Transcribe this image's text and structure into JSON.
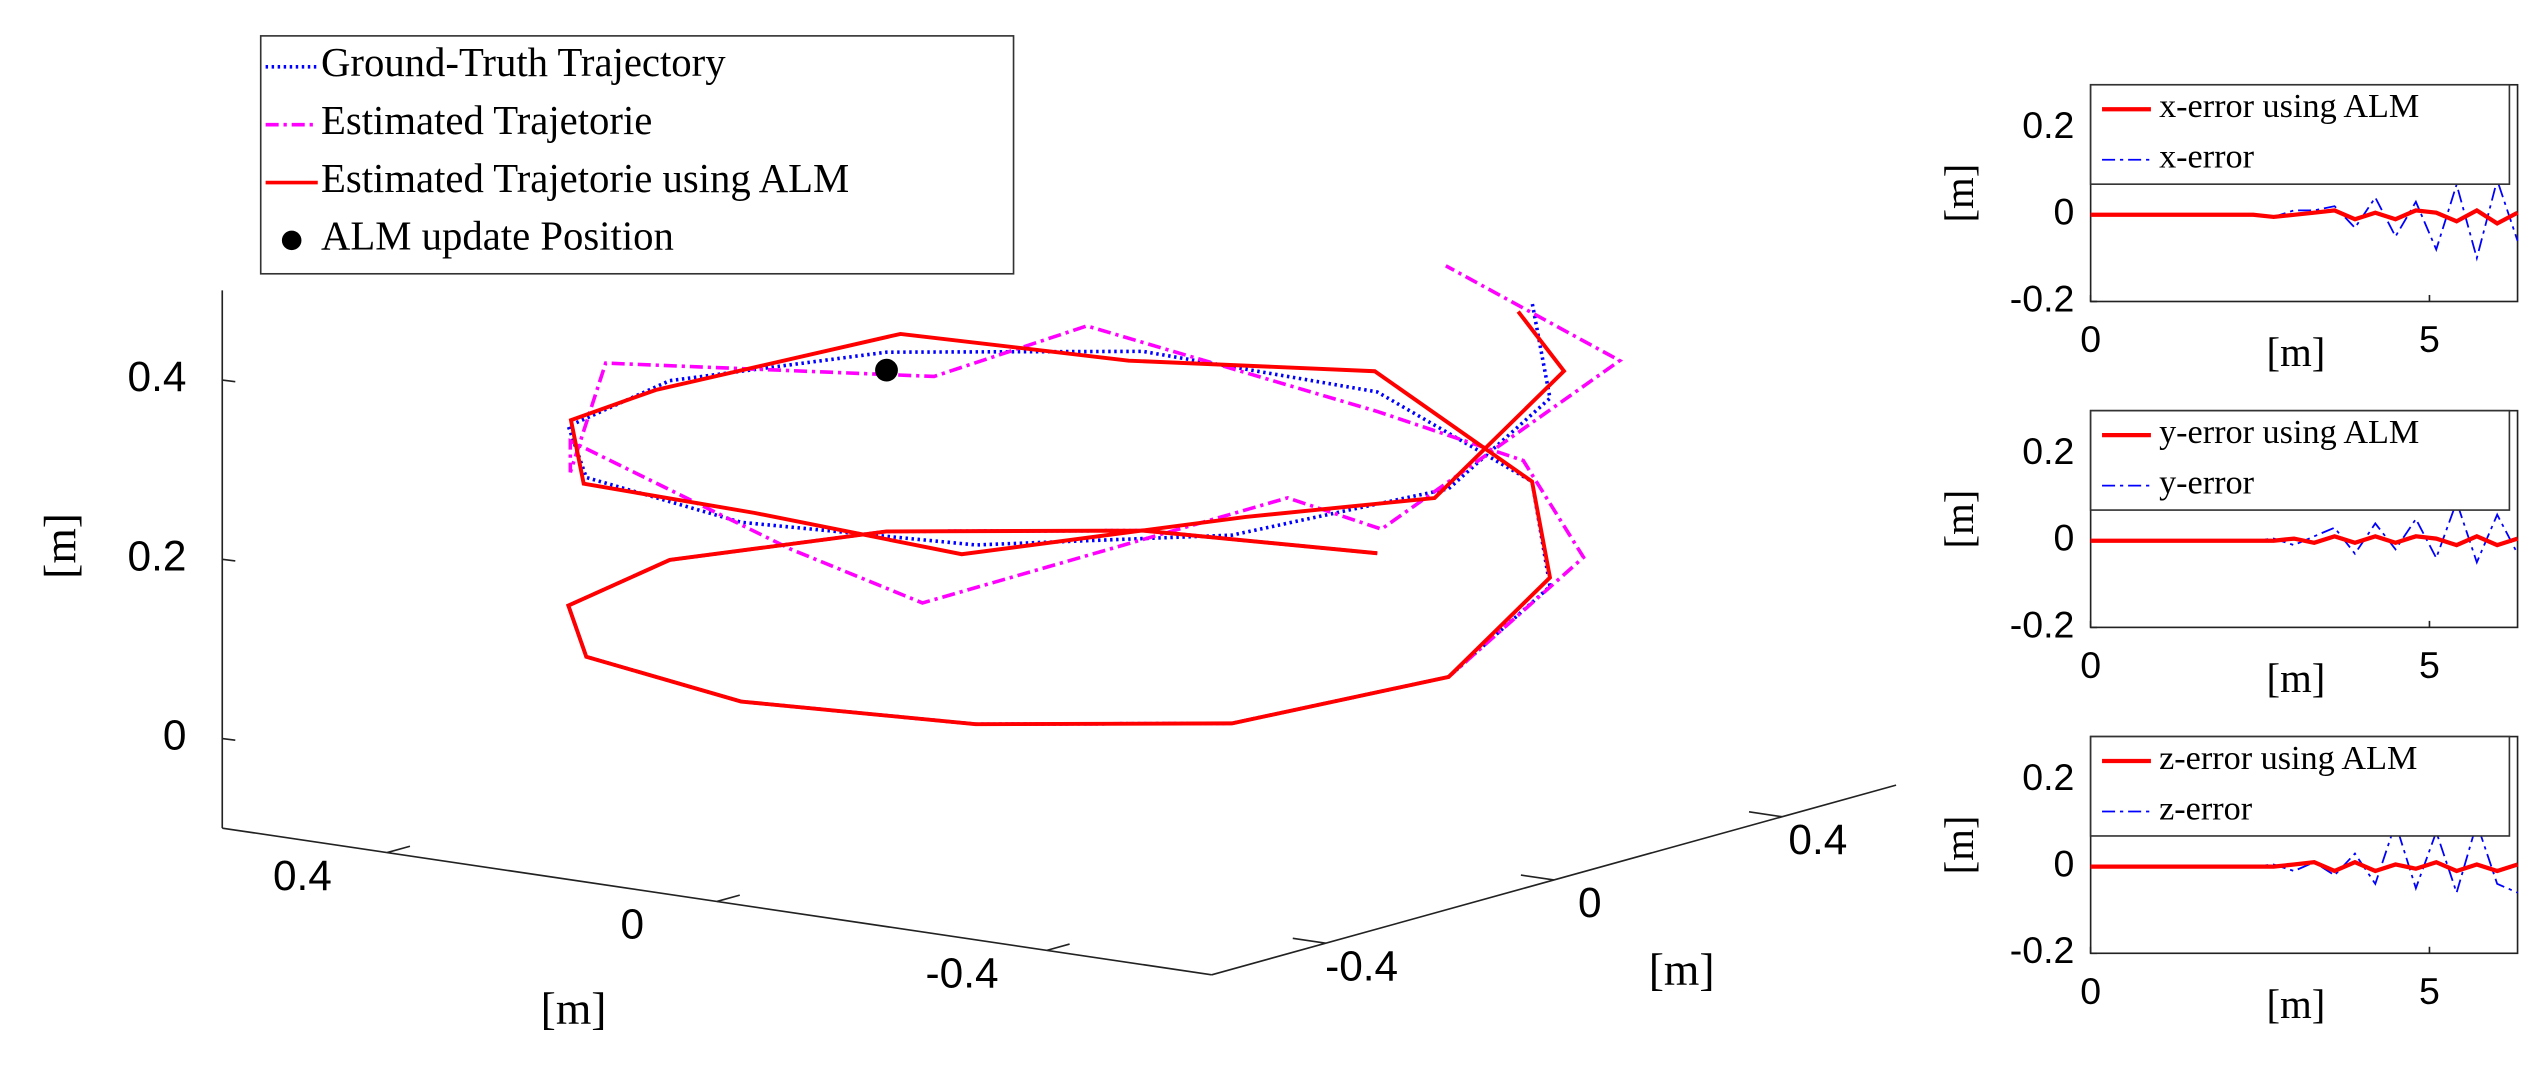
{
  "chart_data": [
    {
      "type": "line3d",
      "xlabel": "[m]",
      "ylabel": "[m]",
      "zlabel": "[m]",
      "xlim": [
        -0.6,
        0.6
      ],
      "ylim": [
        -0.6,
        0.6
      ],
      "zlim": [
        -0.1,
        0.5
      ],
      "xticks": [
        -0.4,
        0,
        0.4
      ],
      "yticks": [
        -0.4,
        0,
        0.4
      ],
      "zticks": [
        0,
        0.2,
        0.4
      ],
      "legend": "upper left",
      "series": [
        {
          "name": "Ground-Truth Trajectory",
          "color": "#0000ff",
          "style": "dotted",
          "x": [
            -0.04,
            0.21,
            0.41,
            0.5,
            0.45,
            0.29,
            0.04,
            -0.21,
            -0.41,
            -0.5,
            -0.45,
            -0.29,
            -0.04,
            0.21,
            0.41,
            0.5,
            0.45,
            0.29,
            0.04,
            -0.21,
            -0.41,
            -0.5,
            -0.45,
            -0.29
          ],
          "y": [
            0.5,
            0.45,
            0.29,
            0.04,
            -0.21,
            -0.41,
            -0.5,
            -0.45,
            -0.29,
            -0.04,
            0.21,
            0.41,
            0.5,
            0.45,
            0.29,
            0.04,
            -0.21,
            -0.41,
            -0.5,
            -0.45,
            -0.29,
            -0.04,
            0.21,
            0.41
          ],
          "z": [
            0.1,
            0.1,
            0.1,
            0.1,
            0.1,
            0.1,
            0.1,
            0.1,
            0.1,
            0.12,
            0.17,
            0.23,
            0.28,
            0.3,
            0.3,
            0.3,
            0.3,
            0.3,
            0.3,
            0.3,
            0.31,
            0.33,
            0.38,
            0.43
          ]
        },
        {
          "name": "Estimated Trajetorie",
          "color": "#ff00ff",
          "style": "dashdot",
          "x": [
            -0.04,
            0.21,
            0.41,
            0.5,
            0.45,
            0.29,
            0.04,
            -0.21,
            -0.41,
            -0.5,
            -0.47,
            -0.3,
            -0.02,
            0.25,
            0.38,
            0.55,
            0.42,
            0.33,
            0.0,
            -0.18,
            -0.45,
            -0.46,
            -0.5,
            -0.22
          ],
          "y": [
            0.5,
            0.45,
            0.29,
            0.04,
            -0.21,
            -0.41,
            -0.5,
            -0.45,
            -0.29,
            -0.04,
            0.24,
            0.38,
            0.53,
            0.41,
            0.33,
            0.0,
            -0.25,
            -0.38,
            -0.47,
            -0.5,
            -0.25,
            -0.1,
            0.26,
            0.36
          ],
          "z": [
            0.1,
            0.1,
            0.1,
            0.1,
            0.1,
            0.1,
            0.1,
            0.1,
            0.1,
            0.12,
            0.2,
            0.26,
            0.25,
            0.33,
            0.27,
            0.32,
            0.26,
            0.33,
            0.27,
            0.24,
            0.35,
            0.29,
            0.42,
            0.47
          ]
        },
        {
          "name": "Estimated Trajetorie using ALM",
          "color": "#ff0000",
          "style": "solid",
          "x": [
            -0.04,
            0.21,
            0.41,
            0.5,
            0.45,
            0.29,
            0.04,
            -0.21,
            -0.41,
            -0.5,
            -0.45,
            -0.29,
            -0.03,
            0.22,
            0.4,
            0.51,
            0.44,
            0.3,
            0.03,
            -0.2,
            -0.42,
            -0.49,
            -0.46,
            -0.28
          ],
          "y": [
            0.5,
            0.45,
            0.29,
            0.04,
            -0.21,
            -0.41,
            -0.5,
            -0.45,
            -0.29,
            -0.04,
            0.21,
            0.41,
            0.51,
            0.44,
            0.3,
            0.03,
            -0.22,
            -0.4,
            -0.49,
            -0.46,
            -0.28,
            -0.05,
            0.22,
            0.4
          ],
          "z": [
            0.1,
            0.1,
            0.1,
            0.1,
            0.1,
            0.1,
            0.1,
            0.1,
            0.1,
            0.12,
            0.18,
            0.23,
            0.3,
            0.29,
            0.32,
            0.29,
            0.31,
            0.29,
            0.31,
            0.29,
            0.33,
            0.32,
            0.41,
            0.42
          ]
        },
        {
          "name": "ALM update Position",
          "color": "#000000",
          "style": "marker",
          "x": [
            0.41
          ],
          "y": [
            0.29
          ],
          "z": [
            0.28
          ]
        }
      ]
    },
    {
      "type": "line",
      "xlabel": "[m]",
      "ylabel": "[m]",
      "xlim": [
        0,
        6.3
      ],
      "ylim": [
        -0.2,
        0.3
      ],
      "xticks": [
        0,
        5
      ],
      "yticks": [
        -0.2,
        0,
        0.2
      ],
      "legend": "upper left",
      "x": [
        0,
        0.3,
        0.6,
        0.9,
        1.2,
        1.5,
        1.8,
        2.1,
        2.4,
        2.7,
        3,
        3.3,
        3.6,
        3.9,
        4.2,
        4.5,
        4.8,
        5.1,
        5.4,
        5.7,
        6,
        6.3
      ],
      "series": [
        {
          "name": "x-error using ALM",
          "color": "#ff0000",
          "style": "solid",
          "values": [
            0,
            0,
            0,
            0,
            0,
            0,
            0,
            0,
            0,
            -0.005,
            0,
            0.005,
            0.01,
            -0.01,
            0.005,
            -0.01,
            0.01,
            0.005,
            -0.015,
            0.01,
            -0.02,
            0.005
          ]
        },
        {
          "name": "x-error",
          "color": "#0000ff",
          "style": "dashdot",
          "values": [
            0,
            0,
            0,
            0,
            0,
            0,
            0,
            0,
            0,
            -0.005,
            0.01,
            0.01,
            0.02,
            -0.03,
            0.04,
            -0.05,
            0.03,
            -0.08,
            0.07,
            -0.1,
            0.08,
            -0.06
          ]
        }
      ]
    },
    {
      "type": "line",
      "xlabel": "[m]",
      "ylabel": "[m]",
      "xlim": [
        0,
        6.3
      ],
      "ylim": [
        -0.2,
        0.3
      ],
      "xticks": [
        0,
        5
      ],
      "yticks": [
        -0.2,
        0,
        0.2
      ],
      "legend": "upper left",
      "x": [
        0,
        0.3,
        0.6,
        0.9,
        1.2,
        1.5,
        1.8,
        2.1,
        2.4,
        2.7,
        3,
        3.3,
        3.6,
        3.9,
        4.2,
        4.5,
        4.8,
        5.1,
        5.4,
        5.7,
        6,
        6.3
      ],
      "series": [
        {
          "name": "y-error using ALM",
          "color": "#ff0000",
          "style": "solid",
          "values": [
            0,
            0,
            0,
            0,
            0,
            0,
            0,
            0,
            0,
            0,
            0.005,
            -0.005,
            0.01,
            -0.005,
            0.01,
            -0.005,
            0.01,
            0.005,
            -0.01,
            0.01,
            -0.01,
            0.005
          ]
        },
        {
          "name": "y-error",
          "color": "#0000ff",
          "style": "dashdot",
          "values": [
            0,
            0,
            0,
            0,
            0,
            0,
            0,
            0,
            0,
            0.005,
            -0.01,
            0.01,
            0.03,
            -0.03,
            0.04,
            -0.02,
            0.05,
            -0.04,
            0.09,
            -0.05,
            0.06,
            -0.03
          ]
        }
      ]
    },
    {
      "type": "line",
      "xlabel": "[m]",
      "ylabel": "[m]",
      "xlim": [
        0,
        6.3
      ],
      "ylim": [
        -0.2,
        0.3
      ],
      "xticks": [
        0,
        5
      ],
      "yticks": [
        -0.2,
        0,
        0.2
      ],
      "legend": "upper left",
      "x": [
        0,
        0.3,
        0.6,
        0.9,
        1.2,
        1.5,
        1.8,
        2.1,
        2.4,
        2.7,
        3,
        3.3,
        3.6,
        3.9,
        4.2,
        4.5,
        4.8,
        5.1,
        5.4,
        5.7,
        6,
        6.3
      ],
      "series": [
        {
          "name": "z-error using ALM",
          "color": "#ff0000",
          "style": "solid",
          "values": [
            0,
            0,
            0,
            0,
            0,
            0,
            0,
            0,
            0,
            0,
            0.005,
            0.01,
            -0.01,
            0.01,
            -0.01,
            0.005,
            -0.005,
            0.01,
            -0.01,
            0.005,
            -0.01,
            0.005
          ]
        },
        {
          "name": "z-error",
          "color": "#0000ff",
          "style": "dashdot",
          "values": [
            0,
            0,
            0,
            0,
            0,
            0,
            0,
            0,
            0,
            0.005,
            -0.01,
            0.01,
            -0.02,
            0.03,
            -0.04,
            0.1,
            -0.05,
            0.08,
            -0.06,
            0.1,
            -0.04,
            -0.06
          ]
        }
      ]
    }
  ]
}
